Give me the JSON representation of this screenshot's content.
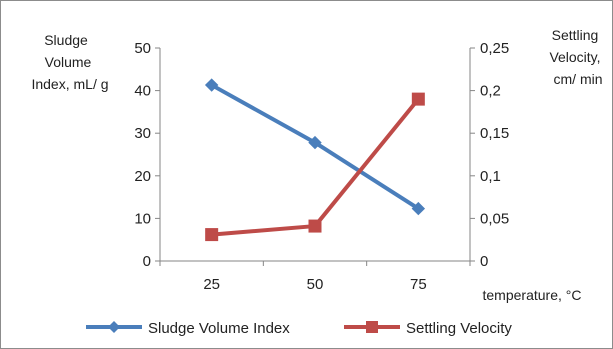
{
  "chart_data": {
    "type": "line",
    "categories": [
      "25",
      "50",
      "75"
    ],
    "x": [
      25,
      50,
      75
    ],
    "xlabel": "temperature,  °C",
    "ylabel_left": [
      "Sludge",
      "Volume",
      "Index, mL/ g"
    ],
    "ylabel_right": [
      "Settling",
      "Velocity,",
      "cm/ min"
    ],
    "ylim_left": [
      0,
      50
    ],
    "ylim_right": [
      0,
      0.25
    ],
    "yticks_left": [
      "0",
      "10",
      "20",
      "30",
      "40",
      "50"
    ],
    "yticks_right": [
      "0",
      "0,05",
      "0,1",
      "0,15",
      "0,2",
      "0,25"
    ],
    "grid": false,
    "legend_position": "bottom",
    "series": [
      {
        "name": "Sludge Volume Index",
        "axis": "left",
        "values": [
          41.3,
          27.8,
          12.3
        ],
        "color": "#4a7ebb",
        "marker": "diamond"
      },
      {
        "name": "Settling Velocity",
        "axis": "right",
        "values": [
          0.031,
          0.041,
          0.19
        ],
        "color": "#be4b48",
        "marker": "square"
      }
    ]
  }
}
